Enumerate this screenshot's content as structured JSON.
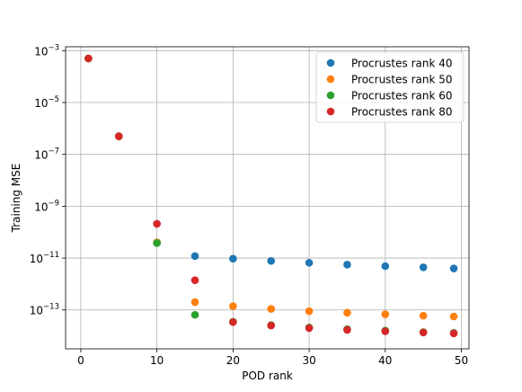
{
  "chart_data": {
    "type": "scatter",
    "xlabel": "POD rank",
    "ylabel": "Training MSE",
    "xlim": [
      -2,
      51
    ],
    "ylim_log10": [
      -14.5,
      -2.85
    ],
    "y_scale": "log",
    "grid": true,
    "legend_position": "top-right",
    "x_ticks": [
      0,
      10,
      20,
      30,
      40,
      50
    ],
    "x_tick_labels": [
      "0",
      "10",
      "20",
      "30",
      "40",
      "50"
    ],
    "y_ticks": [
      -13,
      -11,
      -9,
      -7,
      -5,
      -3
    ],
    "y_tick_labels": [
      "10",
      "10",
      "10",
      "10",
      "10",
      "10"
    ],
    "y_tick_exponents": [
      "−13",
      "−11",
      "−9",
      "−7",
      "−5",
      "−3"
    ],
    "series": [
      {
        "name": "Procrustes rank 40",
        "color": "#1f77b4",
        "points": [
          [
            1,
            0.0005
          ],
          [
            5,
            5e-07
          ],
          [
            10,
            4e-11
          ],
          [
            15,
            1.2e-11
          ],
          [
            20,
            9.5e-12
          ],
          [
            25,
            7.8e-12
          ],
          [
            30,
            6.6e-12
          ],
          [
            35,
            5.6e-12
          ],
          [
            40,
            4.9e-12
          ],
          [
            45,
            4.4e-12
          ],
          [
            49,
            4e-12
          ]
        ]
      },
      {
        "name": "Procrustes rank 50",
        "color": "#ff7f0e",
        "points": [
          [
            1,
            0.0005
          ],
          [
            5,
            5e-07
          ],
          [
            10,
            4e-11
          ],
          [
            15,
            2e-13
          ],
          [
            20,
            1.4e-13
          ],
          [
            25,
            1.1e-13
          ],
          [
            30,
            9e-14
          ],
          [
            35,
            7.8e-14
          ],
          [
            40,
            6.8e-14
          ],
          [
            45,
            6e-14
          ],
          [
            49,
            5.6e-14
          ]
        ]
      },
      {
        "name": "Procrustes rank 60",
        "color": "#2ca02c",
        "points": [
          [
            1,
            0.0005
          ],
          [
            5,
            5e-07
          ],
          [
            10,
            3.8e-11
          ],
          [
            15,
            6.5e-14
          ],
          [
            20,
            3.5e-14
          ],
          [
            25,
            2.6e-14
          ],
          [
            30,
            2.1e-14
          ],
          [
            35,
            1.8e-14
          ],
          [
            40,
            1.6e-14
          ],
          [
            45,
            1.4e-14
          ],
          [
            49,
            1.3e-14
          ]
        ]
      },
      {
        "name": "Procrustes rank 80",
        "color": "#d62728",
        "points": [
          [
            1,
            0.0005
          ],
          [
            5,
            5e-07
          ],
          [
            10,
            2.1e-10
          ],
          [
            15,
            1.4e-12
          ],
          [
            20,
            3.4e-14
          ],
          [
            25,
            2.5e-14
          ],
          [
            30,
            2e-14
          ],
          [
            35,
            1.7e-14
          ],
          [
            40,
            1.5e-14
          ],
          [
            45,
            1.35e-14
          ],
          [
            49,
            1.25e-14
          ]
        ]
      }
    ]
  }
}
